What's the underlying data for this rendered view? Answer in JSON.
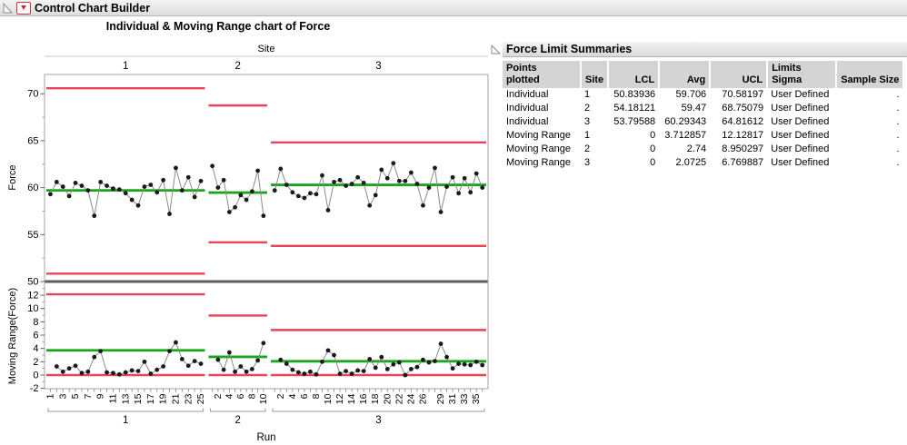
{
  "window": {
    "outline_title": "Control Chart Builder"
  },
  "chart_panel": {
    "title": "Individual & Moving Range chart of Force",
    "group_axis_label": "Site",
    "x_axis_label": "Run",
    "individual_y_label": "Force",
    "mr_y_label": "Moving Range(Force)"
  },
  "chart_data": {
    "type": "line",
    "subtype": "individual-moving-range-control-chart",
    "title": "Individual & Moving Range chart of Force",
    "group_label": "Site",
    "xlabel": "Run",
    "legend": "none",
    "grid": false,
    "colors": {
      "limit": "#e8445a",
      "center": "#1aa51a",
      "point": "#1a1a1a",
      "connector": "#8a8a8a",
      "separator": "#5e5e5e"
    },
    "individual_axis": {
      "label": "Force",
      "ticks": [
        50,
        55,
        60,
        65,
        70
      ],
      "min": 50,
      "max": 72.1
    },
    "mr_axis": {
      "label": "Moving Range(Force)",
      "ticks": [
        -2,
        0,
        2,
        4,
        6,
        8,
        10,
        12
      ],
      "min": -2.05,
      "max": 13.6
    },
    "phases": [
      {
        "site": "1",
        "individual": {
          "lcl": 50.83936,
          "avg": 59.706,
          "ucl": 70.58197,
          "values": [
            59.3,
            60.6,
            60.1,
            59.1,
            60.5,
            60.2,
            59.7,
            57.0,
            60.6,
            60.2,
            59.9,
            59.8,
            59.4,
            58.7,
            58.1,
            60.1,
            60.3,
            59.5,
            60.8,
            57.2,
            62.1,
            59.7,
            61.1,
            59.0,
            60.7
          ]
        },
        "moving_range": {
          "lcl": 0,
          "avg": 3.712857,
          "ucl": 12.12817,
          "values": [
            1.3,
            0.5,
            1.0,
            1.4,
            0.3,
            0.5,
            2.7,
            3.6,
            0.4,
            0.3,
            0.1,
            0.4,
            0.7,
            0.6,
            2.0,
            0.2,
            0.8,
            1.3,
            3.6,
            4.9,
            2.4,
            1.4,
            2.1,
            1.7
          ]
        },
        "x_tick_labels": [
          "1",
          "3",
          "5",
          "7",
          "9",
          "11",
          "13",
          "15",
          "17",
          "19",
          "21",
          "23",
          "25"
        ]
      },
      {
        "site": "2",
        "individual": {
          "lcl": 54.18121,
          "avg": 59.47,
          "ucl": 68.75079,
          "values": [
            62.3,
            60.0,
            60.8,
            57.4,
            57.9,
            59.2,
            58.7,
            59.6,
            61.8,
            57.0
          ]
        },
        "moving_range": {
          "lcl": 0,
          "avg": 2.74,
          "ucl": 8.950297,
          "values": [
            2.3,
            0.8,
            3.4,
            0.5,
            1.3,
            0.5,
            0.9,
            2.2,
            4.8
          ]
        },
        "x_tick_labels": [
          "2",
          "4",
          "6",
          "8",
          "10"
        ]
      },
      {
        "site": "3",
        "individual": {
          "lcl": 53.79588,
          "avg": 60.29343,
          "ucl": 64.81612,
          "values": [
            59.7,
            62.0,
            60.3,
            59.5,
            59.1,
            58.9,
            59.4,
            59.3,
            61.3,
            57.6,
            60.6,
            60.8,
            60.2,
            60.4,
            61.1,
            60.5,
            58.1,
            59.2,
            61.9,
            61.0,
            62.6,
            60.7,
            60.7,
            61.6,
            60.4,
            58.1,
            60.0,
            62.1,
            57.4,
            60.1,
            61.1,
            59.4,
            61.0,
            59.5,
            61.5,
            60.0
          ]
        },
        "moving_range": {
          "lcl": 0,
          "avg": 2.0725,
          "ucl": 6.769887,
          "values": [
            2.3,
            1.7,
            0.8,
            0.4,
            0.2,
            0.5,
            0.1,
            2.0,
            3.7,
            3.0,
            0.2,
            0.6,
            0.2,
            0.7,
            0.6,
            2.4,
            1.1,
            2.7,
            0.9,
            1.6,
            1.9,
            0.0,
            0.9,
            1.2,
            2.3,
            1.9,
            2.1,
            4.7,
            2.7,
            1.0,
            1.7,
            1.6,
            1.5,
            2.0,
            1.5
          ]
        },
        "x_tick_labels": [
          "2",
          "4",
          "6",
          "8",
          "10",
          "12",
          "14",
          "16",
          "18",
          "20",
          "22",
          "24",
          "26",
          "29",
          "31",
          "33",
          "35"
        ]
      }
    ]
  },
  "summary_table": {
    "title": "Force Limit Summaries",
    "columns": [
      {
        "lines": [
          "Points",
          "plotted"
        ]
      },
      {
        "lines": [
          "Site"
        ]
      },
      {
        "lines": [
          "LCL"
        ]
      },
      {
        "lines": [
          "Avg"
        ]
      },
      {
        "lines": [
          "UCL"
        ]
      },
      {
        "lines": [
          "Limits",
          "Sigma"
        ]
      },
      {
        "lines": [
          "Sample Size"
        ]
      }
    ],
    "rows": [
      [
        "Individual",
        "1",
        "50.83936",
        "59.706",
        "70.58197",
        "User Defined",
        "."
      ],
      [
        "Individual",
        "2",
        "54.18121",
        "59.47",
        "68.75079",
        "User Defined",
        "."
      ],
      [
        "Individual",
        "3",
        "53.79588",
        "60.29343",
        "64.81612",
        "User Defined",
        "."
      ],
      [
        "Moving Range",
        "1",
        "0",
        "3.712857",
        "12.12817",
        "User Defined",
        "."
      ],
      [
        "Moving Range",
        "2",
        "0",
        "2.74",
        "8.950297",
        "User Defined",
        "."
      ],
      [
        "Moving Range",
        "3",
        "0",
        "2.0725",
        "6.769887",
        "User Defined",
        "."
      ]
    ]
  }
}
